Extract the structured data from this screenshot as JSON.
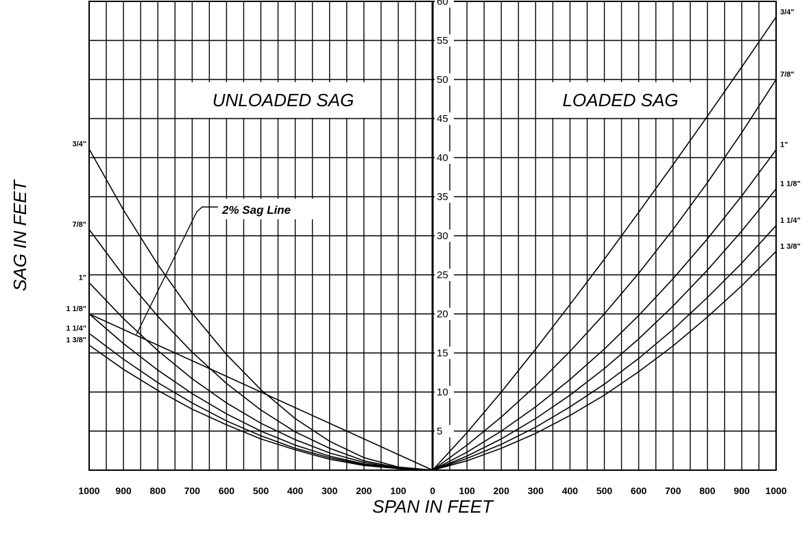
{
  "chart_data": {
    "type": "line",
    "title": "",
    "xlabel": "SPAN IN FEET",
    "ylabel": "SAG IN FEET",
    "x_ticks_left": [
      "1000",
      "900",
      "800",
      "700",
      "600",
      "500",
      "400",
      "300",
      "200",
      "100",
      "0"
    ],
    "x_ticks_right": [
      "0",
      "100",
      "200",
      "300",
      "400",
      "500",
      "600",
      "700",
      "800",
      "900",
      "1000"
    ],
    "y_ticks": [
      "5",
      "10",
      "15",
      "20",
      "25",
      "30",
      "35",
      "40",
      "45",
      "50",
      "55",
      "60"
    ],
    "xlim": [
      0,
      1000
    ],
    "ylim": [
      0,
      60
    ],
    "grid": true,
    "panels": [
      {
        "title": "UNLOADED SAG",
        "direction": "left",
        "annotation": "2% Sag Line",
        "series": [
          {
            "name": "3/4\"",
            "x": [
              0,
              100,
              200,
              300,
              400,
              500,
              600,
              700,
              800,
              900,
              1000
            ],
            "y": [
              0,
              0.4,
              1.6,
              3.7,
              6.6,
              10.3,
              14.8,
              20.1,
              26.3,
              33.3,
              41.1
            ]
          },
          {
            "name": "7/8\"",
            "x": [
              0,
              100,
              200,
              300,
              400,
              500,
              600,
              700,
              800,
              900,
              1000
            ],
            "y": [
              0,
              0.3,
              1.2,
              2.8,
              4.9,
              7.7,
              11.1,
              15.1,
              19.7,
              24.9,
              30.8
            ]
          },
          {
            "name": "1\"",
            "x": [
              0,
              100,
              200,
              300,
              400,
              500,
              600,
              700,
              800,
              900,
              1000
            ],
            "y": [
              0,
              0.2,
              1.0,
              2.2,
              3.9,
              6.0,
              8.6,
              11.7,
              15.3,
              19.4,
              24.0
            ]
          },
          {
            "name": "1 1/8\"",
            "x": [
              0,
              100,
              200,
              300,
              400,
              500,
              600,
              700,
              800,
              900,
              1000
            ],
            "y": [
              0,
              0.2,
              0.8,
              1.8,
              3.2,
              5.0,
              7.2,
              9.8,
              12.8,
              16.2,
              20.0
            ]
          },
          {
            "name": "1 1/4\"",
            "x": [
              0,
              100,
              200,
              300,
              400,
              500,
              600,
              700,
              800,
              900,
              1000
            ],
            "y": [
              0,
              0.2,
              0.7,
              1.6,
              2.8,
              4.4,
              6.3,
              8.6,
              11.2,
              14.2,
              17.5
            ]
          },
          {
            "name": "1 3/8\"",
            "x": [
              0,
              100,
              200,
              300,
              400,
              500,
              600,
              700,
              800,
              900,
              1000
            ],
            "y": [
              0,
              0.2,
              0.6,
              1.4,
              2.6,
              4.0,
              5.8,
              7.8,
              10.2,
              12.9,
              16.0
            ]
          },
          {
            "name": "",
            "x": [
              0,
              1000
            ],
            "y": [
              0,
              20
            ]
          }
        ]
      },
      {
        "title": "LOADED SAG",
        "direction": "right",
        "series": [
          {
            "name": "3/4\"",
            "x": [
              0,
              100,
              200,
              300,
              400,
              500,
              600,
              700,
              800,
              900,
              1000
            ],
            "y": [
              0,
              4.8,
              10.0,
              15.5,
              21.2,
              27.0,
              33.0,
              39.1,
              45.3,
              51.6,
              58.0
            ]
          },
          {
            "name": "7/8\"",
            "x": [
              0,
              100,
              200,
              300,
              400,
              500,
              600,
              700,
              800,
              900,
              1000
            ],
            "y": [
              0,
              3.2,
              6.8,
              10.8,
              15.2,
              20.0,
              25.2,
              30.8,
              36.8,
              43.2,
              50.0
            ]
          },
          {
            "name": "1\"",
            "x": [
              0,
              100,
              200,
              300,
              400,
              500,
              600,
              700,
              800,
              900,
              1000
            ],
            "y": [
              0,
              2.3,
              5.0,
              8.1,
              11.6,
              15.5,
              19.8,
              24.5,
              29.6,
              35.1,
              41.0
            ]
          },
          {
            "name": "1 1/8\"",
            "x": [
              0,
              100,
              200,
              300,
              400,
              500,
              600,
              700,
              800,
              900,
              1000
            ],
            "y": [
              0,
              1.8,
              4.0,
              6.6,
              9.6,
              13.0,
              16.8,
              21.0,
              25.6,
              30.6,
              36.0
            ]
          },
          {
            "name": "1 1/4\"",
            "x": [
              0,
              100,
              200,
              300,
              400,
              500,
              600,
              700,
              800,
              900,
              1000
            ],
            "y": [
              0,
              1.5,
              3.3,
              5.5,
              8.1,
              11.0,
              14.3,
              18.0,
              22.1,
              26.5,
              31.3
            ]
          },
          {
            "name": "1 3/8\"",
            "x": [
              0,
              100,
              200,
              300,
              400,
              500,
              600,
              700,
              800,
              900,
              1000
            ],
            "y": [
              0,
              1.2,
              2.8,
              4.7,
              7.0,
              9.6,
              12.6,
              15.9,
              19.6,
              23.6,
              28.0
            ]
          }
        ]
      }
    ]
  }
}
